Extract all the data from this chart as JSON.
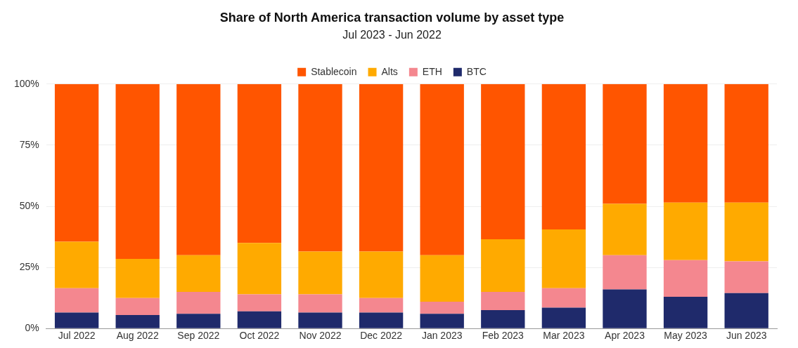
{
  "chart_data": {
    "type": "bar",
    "title": "Share of North America transaction volume by asset type",
    "subtitle": "Jul 2023 - Jun 2022",
    "categories": [
      "Jul 2022",
      "Aug 2022",
      "Sep 2022",
      "Oct 2022",
      "Nov 2022",
      "Dec 2022",
      "Jan 2023",
      "Feb 2023",
      "Mar 2023",
      "Apr 2023",
      "May 2023",
      "Jun 2023"
    ],
    "stacked": true,
    "legend": "top",
    "grid": "y",
    "ylim": [
      0,
      100
    ],
    "yticks": [
      {
        "value": 0,
        "label": "0%"
      },
      {
        "value": 25,
        "label": "25%"
      },
      {
        "value": 50,
        "label": "50%"
      },
      {
        "value": 75,
        "label": "75%"
      },
      {
        "value": 100,
        "label": "100%"
      }
    ],
    "series": [
      {
        "name": "BTC",
        "color": "#1f2a6b",
        "values": [
          6.5,
          5.5,
          6,
          7,
          6.5,
          6.5,
          6,
          7.5,
          8.5,
          16,
          13,
          14.5
        ]
      },
      {
        "name": "ETH",
        "color": "#f4878f",
        "values": [
          10,
          7,
          9,
          7,
          7.5,
          6,
          5,
          7.5,
          8,
          14,
          15,
          13
        ]
      },
      {
        "name": "Alts",
        "color": "#ffaa00",
        "values": [
          19,
          16,
          15,
          21,
          17.5,
          19,
          19,
          21.5,
          24,
          21,
          23.5,
          24
        ]
      },
      {
        "name": "Stablecoin",
        "color": "#ff5500",
        "values": [
          64.5,
          71.5,
          70,
          65,
          68.5,
          68.5,
          70,
          63.5,
          59.5,
          49,
          48.5,
          48.5
        ]
      }
    ]
  }
}
